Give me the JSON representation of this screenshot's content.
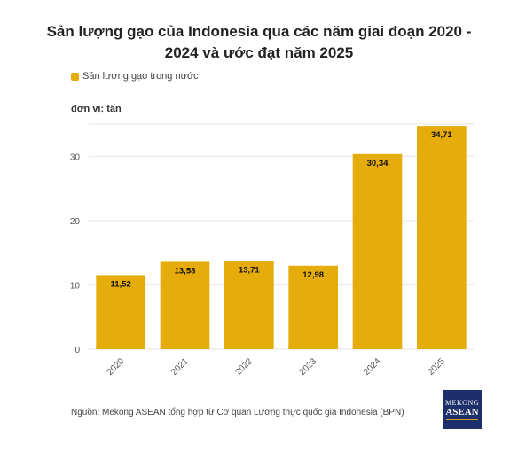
{
  "header": {
    "title": "Sản lượng gạo của Indonesia qua các năm giai đoạn 2020 - 2024 và ước đạt năm 2025"
  },
  "colors": {
    "bar": "#e6ac0c",
    "grid": "#e6e6e6",
    "axis_text": "#555555"
  },
  "chart_data": {
    "type": "bar",
    "title": "Sản lượng gạo của Indonesia qua các năm giai đoạn 2020 - 2024 và ước đạt năm 2025",
    "unit_label": "đơn vị: tấn",
    "legend": "Sản lượng gạo trong nước",
    "legend_position": "top-left",
    "categories": [
      "2020",
      "2021",
      "2022",
      "2023",
      "2024",
      "2025"
    ],
    "values": [
      11.52,
      13.58,
      13.71,
      12.98,
      30.34,
      34.71
    ],
    "value_labels": [
      "11,52",
      "13,58",
      "13,71",
      "12,98",
      "30,34",
      "34,71"
    ],
    "yticks": [
      0,
      10,
      20,
      30
    ],
    "ylim": [
      0,
      35
    ],
    "grid": true
  },
  "footer": {
    "source": "Nguồn: Mekong ASEAN tổng hợp từ Cơ quan Lương thực quốc gia Indonesia (BPN)"
  },
  "logo": {
    "top": "MEKONG",
    "bottom": "ASEAN"
  }
}
